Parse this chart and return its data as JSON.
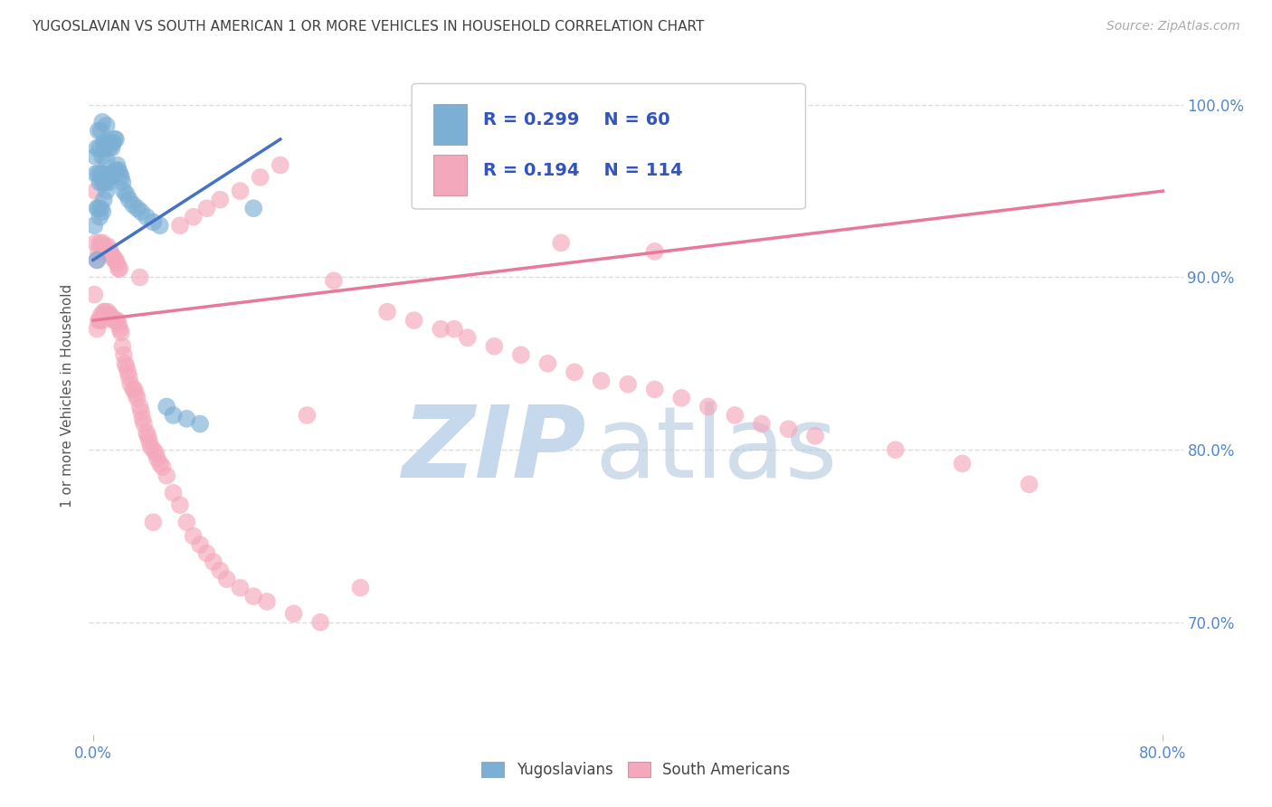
{
  "title": "YUGOSLAVIAN VS SOUTH AMERICAN 1 OR MORE VEHICLES IN HOUSEHOLD CORRELATION CHART",
  "source": "Source: ZipAtlas.com",
  "ylabel": "1 or more Vehicles in Household",
  "ymin": 0.635,
  "ymax": 1.028,
  "xmin": -0.003,
  "xmax": 0.815,
  "blue_R": 0.299,
  "blue_N": 60,
  "pink_R": 0.194,
  "pink_N": 114,
  "blue_color": "#7BAFD4",
  "pink_color": "#F4A8BB",
  "blue_line_color": "#4472C4",
  "pink_line_color": "#E8799A",
  "legend_text_color": "#3355BB",
  "title_color": "#404040",
  "source_color": "#AAAAAA",
  "watermark_zip_color": "#C5D8EC",
  "watermark_atlas_color": "#B0C8DC",
  "axis_label_color": "#555555",
  "tick_color": "#5588CC",
  "grid_color": "#DDDDDD",
  "blue_x": [
    0.001,
    0.002,
    0.002,
    0.003,
    0.003,
    0.003,
    0.004,
    0.004,
    0.004,
    0.005,
    0.005,
    0.005,
    0.006,
    0.006,
    0.006,
    0.007,
    0.007,
    0.007,
    0.007,
    0.008,
    0.008,
    0.008,
    0.009,
    0.009,
    0.01,
    0.01,
    0.01,
    0.011,
    0.011,
    0.012,
    0.012,
    0.013,
    0.013,
    0.014,
    0.014,
    0.015,
    0.015,
    0.016,
    0.016,
    0.017,
    0.017,
    0.018,
    0.019,
    0.02,
    0.021,
    0.022,
    0.023,
    0.025,
    0.027,
    0.03,
    0.033,
    0.036,
    0.04,
    0.045,
    0.05,
    0.055,
    0.06,
    0.07,
    0.08,
    0.12
  ],
  "blue_y": [
    0.93,
    0.96,
    0.97,
    0.91,
    0.94,
    0.975,
    0.94,
    0.96,
    0.985,
    0.935,
    0.955,
    0.975,
    0.94,
    0.96,
    0.985,
    0.938,
    0.955,
    0.97,
    0.99,
    0.945,
    0.96,
    0.978,
    0.955,
    0.975,
    0.95,
    0.968,
    0.988,
    0.958,
    0.978,
    0.955,
    0.975,
    0.96,
    0.978,
    0.958,
    0.975,
    0.96,
    0.978,
    0.96,
    0.98,
    0.962,
    0.98,
    0.965,
    0.962,
    0.96,
    0.958,
    0.955,
    0.95,
    0.948,
    0.945,
    0.942,
    0.94,
    0.938,
    0.935,
    0.932,
    0.93,
    0.825,
    0.82,
    0.818,
    0.815,
    0.94
  ],
  "pink_x": [
    0.001,
    0.002,
    0.002,
    0.003,
    0.003,
    0.004,
    0.004,
    0.005,
    0.005,
    0.006,
    0.006,
    0.007,
    0.007,
    0.008,
    0.008,
    0.009,
    0.009,
    0.01,
    0.01,
    0.011,
    0.011,
    0.012,
    0.012,
    0.013,
    0.013,
    0.014,
    0.014,
    0.015,
    0.015,
    0.016,
    0.016,
    0.017,
    0.017,
    0.018,
    0.018,
    0.019,
    0.019,
    0.02,
    0.02,
    0.021,
    0.022,
    0.023,
    0.024,
    0.025,
    0.026,
    0.027,
    0.028,
    0.03,
    0.031,
    0.032,
    0.033,
    0.035,
    0.036,
    0.037,
    0.038,
    0.04,
    0.041,
    0.042,
    0.043,
    0.045,
    0.047,
    0.048,
    0.05,
    0.052,
    0.055,
    0.06,
    0.065,
    0.07,
    0.075,
    0.08,
    0.085,
    0.09,
    0.095,
    0.1,
    0.11,
    0.12,
    0.13,
    0.15,
    0.17,
    0.2,
    0.22,
    0.24,
    0.26,
    0.28,
    0.3,
    0.32,
    0.34,
    0.36,
    0.38,
    0.4,
    0.42,
    0.44,
    0.46,
    0.48,
    0.5,
    0.52,
    0.54,
    0.6,
    0.65,
    0.7,
    0.35,
    0.42,
    0.27,
    0.18,
    0.16,
    0.14,
    0.125,
    0.11,
    0.095,
    0.085,
    0.075,
    0.065,
    0.045,
    0.035
  ],
  "pink_y": [
    0.89,
    0.92,
    0.95,
    0.87,
    0.91,
    0.875,
    0.915,
    0.875,
    0.92,
    0.878,
    0.918,
    0.875,
    0.92,
    0.88,
    0.918,
    0.88,
    0.918,
    0.878,
    0.915,
    0.88,
    0.918,
    0.878,
    0.915,
    0.878,
    0.915,
    0.876,
    0.912,
    0.876,
    0.912,
    0.875,
    0.91,
    0.875,
    0.91,
    0.875,
    0.908,
    0.873,
    0.905,
    0.87,
    0.905,
    0.868,
    0.86,
    0.855,
    0.85,
    0.848,
    0.845,
    0.842,
    0.838,
    0.835,
    0.835,
    0.832,
    0.83,
    0.825,
    0.822,
    0.818,
    0.815,
    0.81,
    0.808,
    0.805,
    0.802,
    0.8,
    0.798,
    0.795,
    0.792,
    0.79,
    0.785,
    0.775,
    0.768,
    0.758,
    0.75,
    0.745,
    0.74,
    0.735,
    0.73,
    0.725,
    0.72,
    0.715,
    0.712,
    0.705,
    0.7,
    0.72,
    0.88,
    0.875,
    0.87,
    0.865,
    0.86,
    0.855,
    0.85,
    0.845,
    0.84,
    0.838,
    0.835,
    0.83,
    0.825,
    0.82,
    0.815,
    0.812,
    0.808,
    0.8,
    0.792,
    0.78,
    0.92,
    0.915,
    0.87,
    0.898,
    0.82,
    0.965,
    0.958,
    0.95,
    0.945,
    0.94,
    0.935,
    0.93,
    0.758,
    0.9
  ],
  "blue_line_x0": 0.0,
  "blue_line_x1": 0.14,
  "blue_line_y0": 0.91,
  "blue_line_y1": 0.98,
  "pink_line_x0": 0.0,
  "pink_line_x1": 0.8,
  "pink_line_y0": 0.875,
  "pink_line_y1": 0.95
}
